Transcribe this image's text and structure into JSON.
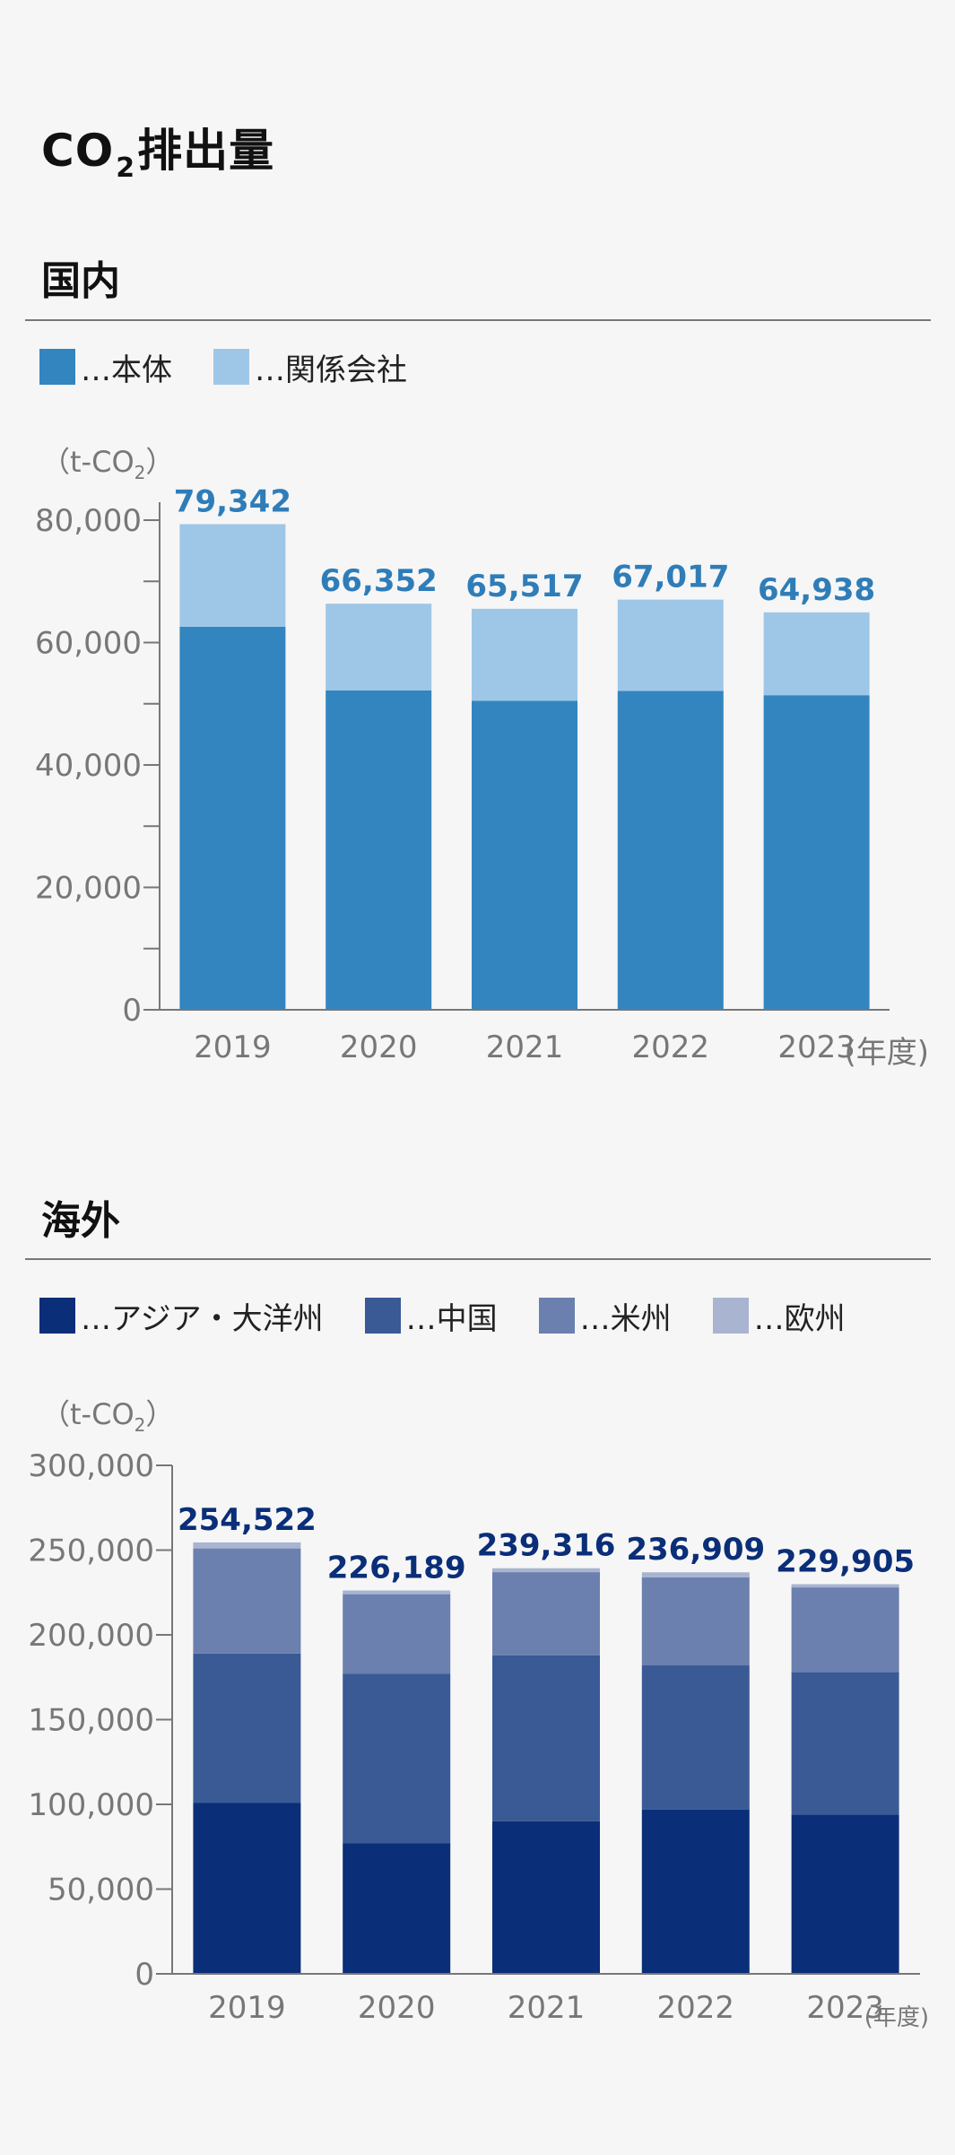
{
  "page": {
    "title_prefix": "CO",
    "title_sub": "2",
    "title_suffix": "排出量"
  },
  "domestic": {
    "heading": "国内",
    "legend": [
      {
        "label": "…本体",
        "color": "#3385bf"
      },
      {
        "label": "…関係会社",
        "color": "#9ec7e7"
      }
    ]
  },
  "overseas": {
    "heading": "海外",
    "legend": [
      {
        "label": "…アジア・大洋州",
        "color": "#0a2e78"
      },
      {
        "label": "…中国",
        "color": "#3a5a96"
      },
      {
        "label": "…米州",
        "color": "#6b80ae"
      },
      {
        "label": "…欧州",
        "color": "#a8b4d0"
      }
    ]
  },
  "chart_data": [
    {
      "type": "bar",
      "stacked": true,
      "title": "国内",
      "unit_label_prefix": "（t-CO",
      "unit_label_sub": "2",
      "unit_label_suffix": "）",
      "x_unit": "(年度)",
      "categories": [
        "2019",
        "2020",
        "2021",
        "2022",
        "2023"
      ],
      "ylim": [
        0,
        80000
      ],
      "yticks": [
        0,
        20000,
        40000,
        60000,
        80000
      ],
      "ytick_labels": [
        "0",
        "20,000",
        "40,000",
        "60,000",
        "80,000"
      ],
      "series": [
        {
          "name": "本体",
          "color": "#3385bf",
          "values": [
            62600,
            52200,
            50500,
            52100,
            51400
          ]
        },
        {
          "name": "関係会社",
          "color": "#9ec7e7",
          "values": [
            16742,
            14152,
            15017,
            14917,
            13538
          ]
        }
      ],
      "totals": [
        79342,
        66352,
        65517,
        67017,
        64938
      ],
      "total_labels": [
        "79,342",
        "66,352",
        "65,517",
        "67,017",
        "64,938"
      ],
      "total_color": "#2f7db8"
    },
    {
      "type": "bar",
      "stacked": true,
      "title": "海外",
      "unit_label_prefix": "（t-CO",
      "unit_label_sub": "2",
      "unit_label_suffix": "）",
      "x_unit": "(年度)",
      "categories": [
        "2019",
        "2020",
        "2021",
        "2022",
        "2023"
      ],
      "ylim": [
        0,
        300000
      ],
      "yticks": [
        0,
        50000,
        100000,
        150000,
        200000,
        250000,
        300000
      ],
      "ytick_labels": [
        "0",
        "50,000",
        "100,000",
        "150,000",
        "200,000",
        "250,000",
        "300,000"
      ],
      "series": [
        {
          "name": "アジア・大洋州",
          "color": "#0a2e78",
          "values": [
            101000,
            77000,
            90000,
            97000,
            94000
          ]
        },
        {
          "name": "中国",
          "color": "#3a5a96",
          "values": [
            88000,
            100000,
            98000,
            85000,
            84000
          ]
        },
        {
          "name": "米州",
          "color": "#6b80ae",
          "values": [
            62000,
            47000,
            49000,
            52000,
            50000
          ]
        },
        {
          "name": "欧州",
          "color": "#a8b4d0",
          "values": [
            3522,
            2189,
            2316,
            2909,
            1905
          ]
        }
      ],
      "totals": [
        254522,
        226189,
        239316,
        236909,
        229905
      ],
      "total_labels": [
        "254,522",
        "226,189",
        "239,316",
        "236,909",
        "229,905"
      ],
      "total_color": "#0a2e78"
    }
  ]
}
